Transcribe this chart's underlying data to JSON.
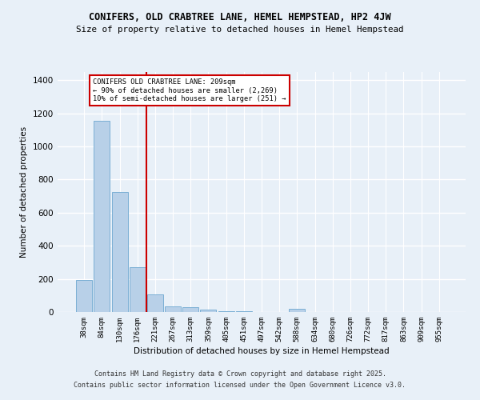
{
  "title1": "CONIFERS, OLD CRABTREE LANE, HEMEL HEMPSTEAD, HP2 4JW",
  "title2": "Size of property relative to detached houses in Hemel Hempstead",
  "xlabel": "Distribution of detached houses by size in Hemel Hempstead",
  "ylabel": "Number of detached properties",
  "categories": [
    "38sqm",
    "84sqm",
    "130sqm",
    "176sqm",
    "221sqm",
    "267sqm",
    "313sqm",
    "359sqm",
    "405sqm",
    "451sqm",
    "497sqm",
    "542sqm",
    "588sqm",
    "634sqm",
    "680sqm",
    "726sqm",
    "772sqm",
    "817sqm",
    "863sqm",
    "909sqm",
    "955sqm"
  ],
  "values": [
    195,
    1155,
    725,
    270,
    105,
    35,
    28,
    15,
    5,
    3,
    2,
    2,
    18,
    2,
    1,
    1,
    1,
    1,
    1,
    1,
    1
  ],
  "bar_color": "#b8d0e8",
  "bar_edge_color": "#7aafd4",
  "vline_color": "#cc0000",
  "annotation_text": "CONIFERS OLD CRABTREE LANE: 209sqm\n← 90% of detached houses are smaller (2,269)\n10% of semi-detached houses are larger (251) →",
  "annotation_box_color": "#cc0000",
  "background_color": "#e8f0f8",
  "plot_bg_color": "#e8f0f8",
  "grid_color": "#ffffff",
  "ylim": [
    0,
    1450
  ],
  "yticks": [
    0,
    200,
    400,
    600,
    800,
    1000,
    1200,
    1400
  ],
  "footer1": "Contains HM Land Registry data © Crown copyright and database right 2025.",
  "footer2": "Contains public sector information licensed under the Open Government Licence v3.0."
}
